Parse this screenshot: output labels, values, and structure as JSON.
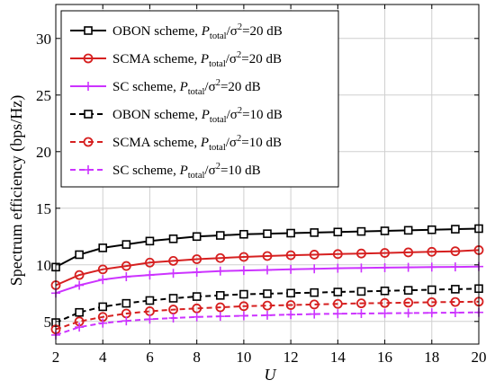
{
  "chart_data": {
    "type": "line",
    "title": "",
    "xlabel": "U",
    "ylabel": "Spectrum efficiency (bps/Hz)",
    "xlim": [
      2,
      20
    ],
    "ylim": [
      3,
      33
    ],
    "x_ticks": [
      2,
      4,
      6,
      8,
      10,
      12,
      14,
      16,
      18,
      20
    ],
    "y_ticks": [
      5,
      10,
      15,
      20,
      25,
      30
    ],
    "grid": true,
    "legend_position": "top-left",
    "x": [
      2,
      3,
      4,
      5,
      6,
      7,
      8,
      9,
      10,
      11,
      12,
      13,
      14,
      15,
      16,
      17,
      18,
      19,
      20
    ],
    "series": [
      {
        "name": "OBON scheme,  P_total/σ²=20 dB",
        "label_prefix": "OBON scheme,  ",
        "label_sub": "total",
        "label_suffix": "=20 dB",
        "color": "#000000",
        "line_style": "solid",
        "marker": "square",
        "values": [
          9.8,
          10.9,
          11.5,
          11.8,
          12.1,
          12.3,
          12.5,
          12.6,
          12.7,
          12.75,
          12.8,
          12.85,
          12.9,
          12.95,
          13.0,
          13.05,
          13.1,
          13.15,
          13.2
        ]
      },
      {
        "name": "SCMA scheme,  P_total/σ²=20 dB",
        "label_prefix": "SCMA scheme,  ",
        "label_sub": "total",
        "label_suffix": "=20 dB",
        "color": "#d62020",
        "line_style": "solid",
        "marker": "circle",
        "values": [
          8.2,
          9.1,
          9.6,
          9.9,
          10.2,
          10.35,
          10.5,
          10.6,
          10.7,
          10.78,
          10.85,
          10.9,
          10.95,
          11.0,
          11.05,
          11.1,
          11.15,
          11.2,
          11.3
        ]
      },
      {
        "name": "SC scheme,  P_total/σ²=20 dB",
        "label_prefix": "SC scheme,  ",
        "label_sub": "total",
        "label_suffix": "=20 dB",
        "color": "#cc33ff",
        "line_style": "solid",
        "marker": "plus",
        "values": [
          7.5,
          8.2,
          8.7,
          8.95,
          9.1,
          9.25,
          9.35,
          9.45,
          9.5,
          9.55,
          9.6,
          9.65,
          9.7,
          9.72,
          9.75,
          9.78,
          9.8,
          9.82,
          9.85
        ]
      },
      {
        "name": "OBON scheme,  P_total/σ²=10 dB",
        "label_prefix": "OBON scheme,  ",
        "label_sub": "total",
        "label_suffix": "=10 dB",
        "color": "#000000",
        "line_style": "dashed",
        "marker": "square",
        "values": [
          4.9,
          5.8,
          6.3,
          6.6,
          6.85,
          7.05,
          7.2,
          7.3,
          7.4,
          7.45,
          7.5,
          7.55,
          7.6,
          7.65,
          7.7,
          7.75,
          7.8,
          7.85,
          7.9
        ]
      },
      {
        "name": "SCMA scheme,  P_total/σ²=10 dB",
        "label_prefix": "SCMA scheme,  ",
        "label_sub": "total",
        "label_suffix": "=10 dB",
        "color": "#d62020",
        "line_style": "dashed",
        "marker": "circle",
        "values": [
          4.3,
          5.0,
          5.4,
          5.7,
          5.9,
          6.05,
          6.15,
          6.25,
          6.35,
          6.4,
          6.45,
          6.5,
          6.55,
          6.6,
          6.63,
          6.66,
          6.7,
          6.72,
          6.75
        ]
      },
      {
        "name": "SC scheme,  P_total/σ²=10 dB",
        "label_prefix": "SC scheme,  ",
        "label_sub": "total",
        "label_suffix": "=10 dB",
        "color": "#cc33ff",
        "line_style": "dashed",
        "marker": "plus",
        "values": [
          3.8,
          4.5,
          4.85,
          5.05,
          5.2,
          5.3,
          5.4,
          5.45,
          5.5,
          5.55,
          5.6,
          5.65,
          5.68,
          5.7,
          5.72,
          5.74,
          5.76,
          5.78,
          5.8
        ]
      }
    ]
  }
}
